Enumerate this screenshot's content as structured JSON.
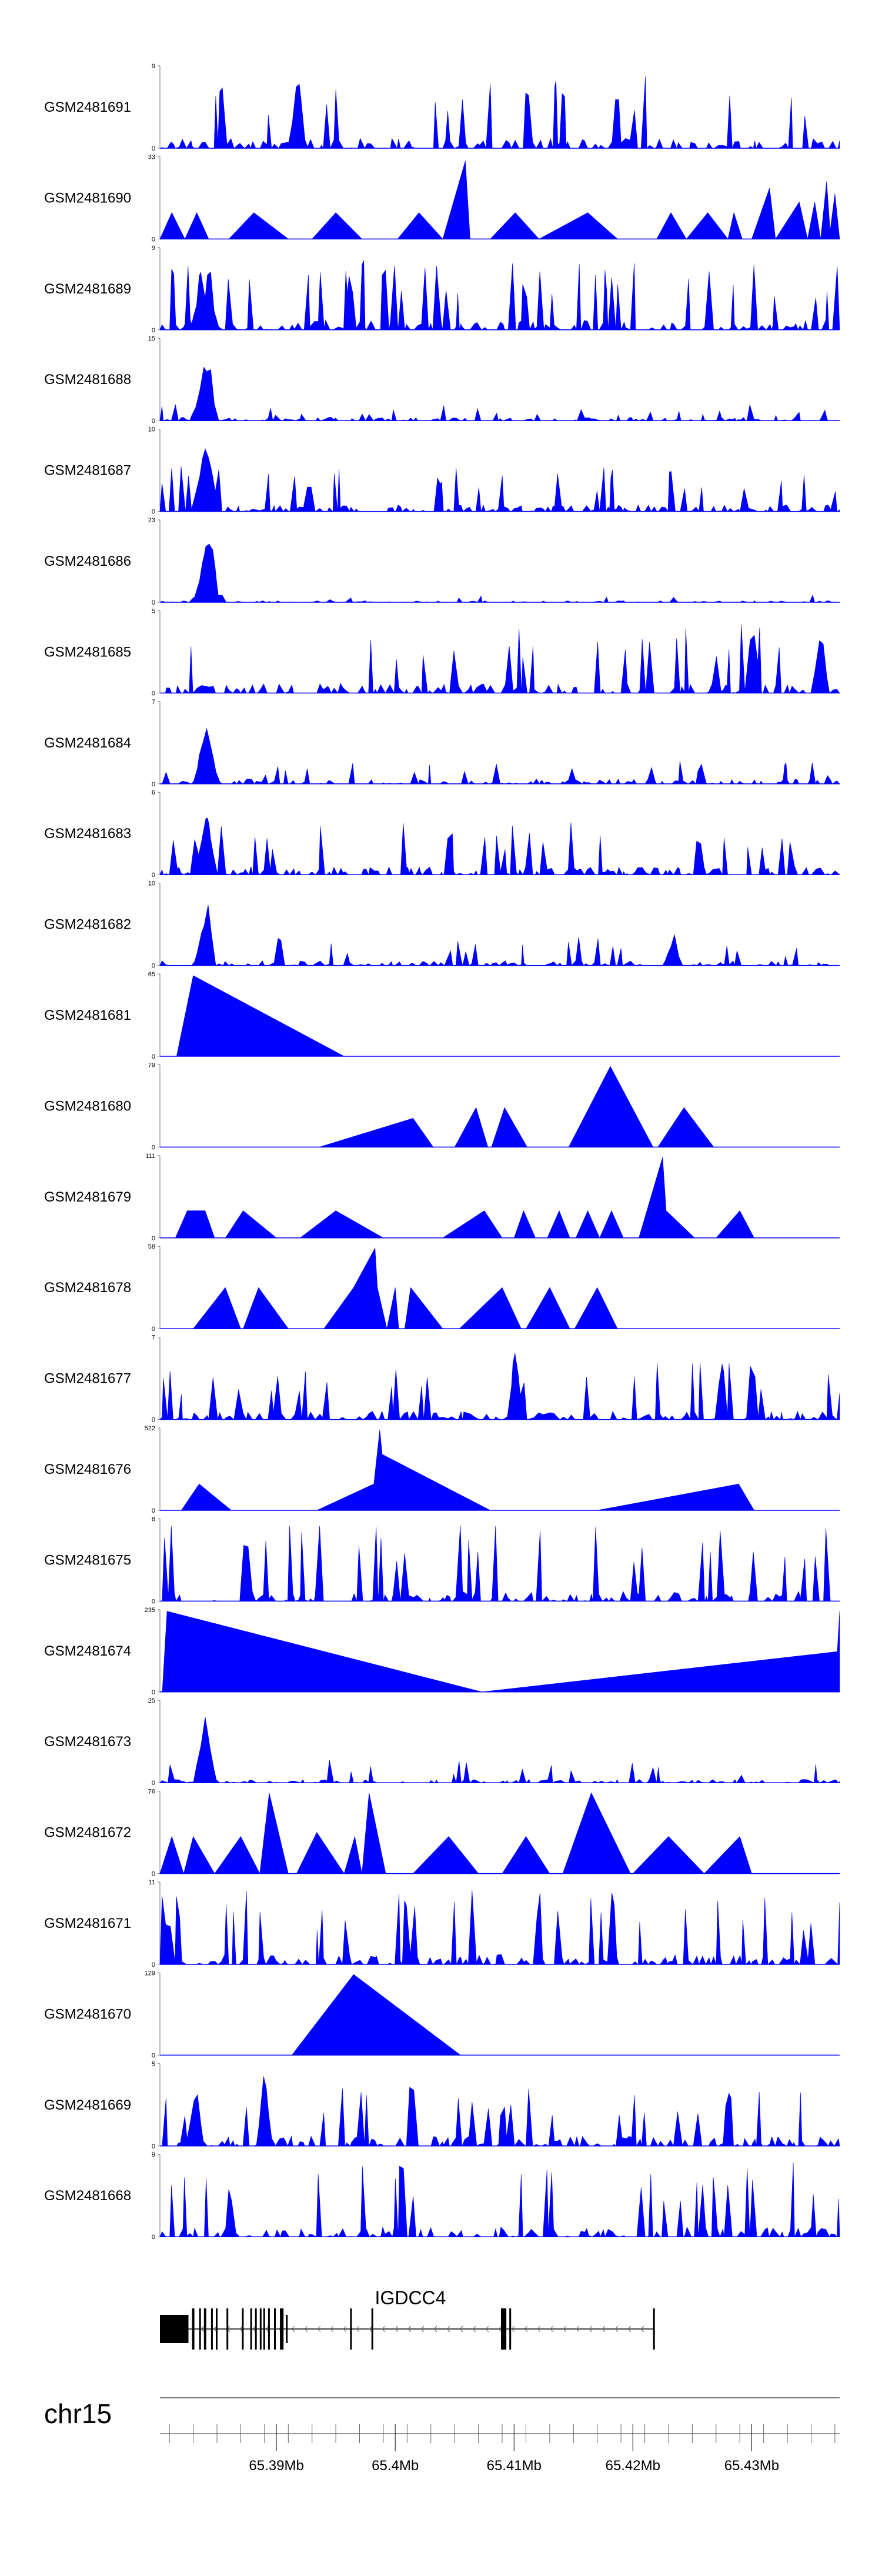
{
  "chart_data": {
    "type": "area",
    "chromosome": "chr15",
    "x_range": [
      65.3802,
      65.4374
    ],
    "x_unit": "Mb",
    "axis_ticks": [
      "65.39Mb",
      "65.4Mb",
      "65.41Mb",
      "65.42Mb",
      "65.43Mb"
    ],
    "axis_tick_values": [
      65.39,
      65.4,
      65.41,
      65.42,
      65.43
    ],
    "gene": {
      "name": "IGDCC4",
      "start": 65.3802,
      "end": 65.4218,
      "strand": "-"
    },
    "series_color": "#0000ff",
    "tracks": [
      {
        "name": "GSM2481691",
        "ymax": "9",
        "ymax_val": 9,
        "noise": {
          "seed": 11,
          "density": 0.55,
          "base": 0.12,
          "peakProb": 0.25,
          "peakMin": 0.35,
          "peakMax": 0.9
        },
        "peaks": [
          [
            65.3918,
            1.0
          ]
        ]
      },
      {
        "name": "GSM2481690",
        "ymax": "33",
        "ymax_val": 33,
        "points": [
          [
            65.3802,
            0
          ],
          [
            65.3812,
            0.32
          ],
          [
            65.3823,
            0
          ],
          [
            65.3833,
            0.32
          ],
          [
            65.3843,
            0
          ],
          [
            65.386,
            0
          ],
          [
            65.3881,
            0.32
          ],
          [
            65.391,
            0
          ],
          [
            65.393,
            0
          ],
          [
            65.395,
            0.32
          ],
          [
            65.3972,
            0
          ],
          [
            65.4002,
            0
          ],
          [
            65.402,
            0.32
          ],
          [
            65.404,
            0
          ],
          [
            65.4059,
            0.95
          ],
          [
            65.4063,
            0
          ],
          [
            65.408,
            0
          ],
          [
            65.4101,
            0.32
          ],
          [
            65.4121,
            0
          ],
          [
            65.4162,
            0.32
          ],
          [
            65.4187,
            0
          ],
          [
            65.422,
            0
          ],
          [
            65.4232,
            0.32
          ],
          [
            65.4245,
            0
          ],
          [
            65.4263,
            0.32
          ],
          [
            65.428,
            0
          ],
          [
            65.4285,
            0.32
          ],
          [
            65.4292,
            0
          ],
          [
            65.43,
            0
          ],
          [
            65.4315,
            0.62
          ],
          [
            65.432,
            0
          ],
          [
            65.434,
            0.45
          ],
          [
            65.4347,
            0
          ],
          [
            65.4353,
            0.45
          ],
          [
            65.4358,
            0
          ],
          [
            65.4363,
            0.7
          ],
          [
            65.4366,
            0.1
          ],
          [
            65.437,
            0.55
          ],
          [
            65.4374,
            0
          ]
        ]
      },
      {
        "name": "GSM2481689",
        "ymax": "9",
        "ymax_val": 9,
        "noise": {
          "seed": 23,
          "density": 0.55,
          "base": 0.12,
          "peakProb": 0.25,
          "peakMin": 0.35,
          "peakMax": 0.85
        },
        "peaks": [
          [
            65.3843,
            0.95
          ],
          [
            65.3835,
            0.6
          ]
        ]
      },
      {
        "name": "GSM2481688",
        "ymax": "15",
        "ymax_val": 15,
        "noise": {
          "seed": 31,
          "density": 0.5,
          "base": 0.04,
          "peakProb": 0.15,
          "peakMin": 0.06,
          "peakMax": 0.2
        },
        "peaks": [
          [
            65.384,
            0.95
          ],
          [
            65.3843,
            0.85
          ],
          [
            65.3837,
            0.55
          ],
          [
            65.3834,
            0.3
          ]
        ]
      },
      {
        "name": "GSM2481687",
        "ymax": "10",
        "ymax_val": 10,
        "noise": {
          "seed": 47,
          "density": 0.55,
          "base": 0.08,
          "peakProb": 0.2,
          "peakMin": 0.2,
          "peakMax": 0.55
        },
        "peaks": [
          [
            65.384,
            0.98
          ],
          [
            65.3844,
            0.85
          ],
          [
            65.3836,
            0.6
          ]
        ]
      },
      {
        "name": "GSM2481686",
        "ymax": "23",
        "ymax_val": 23,
        "noise": {
          "seed": 53,
          "density": 0.45,
          "base": 0.02,
          "peakProb": 0.1,
          "peakMin": 0.03,
          "peakMax": 0.09
        },
        "peaks": [
          [
            65.3842,
            0.98
          ],
          [
            65.3845,
            0.9
          ],
          [
            65.3838,
            0.55
          ],
          [
            65.3835,
            0.2
          ]
        ]
      },
      {
        "name": "GSM2481685",
        "ymax": "5",
        "ymax_val": 5,
        "noise": {
          "seed": 61,
          "density": 0.55,
          "base": 0.12,
          "peakProb": 0.25,
          "peakMin": 0.4,
          "peakMax": 0.85
        },
        "peaks": [
          [
            65.4301,
            1.0
          ],
          [
            65.4358,
            0.95
          ]
        ]
      },
      {
        "name": "GSM2481684",
        "ymax": "7",
        "ymax_val": 7,
        "noise": {
          "seed": 73,
          "density": 0.5,
          "base": 0.06,
          "peakProb": 0.15,
          "peakMin": 0.1,
          "peakMax": 0.3
        },
        "peaks": [
          [
            65.3841,
            0.98
          ],
          [
            65.3838,
            0.6
          ],
          [
            65.3845,
            0.5
          ]
        ]
      },
      {
        "name": "GSM2481683",
        "ymax": "6",
        "ymax_val": 6,
        "noise": {
          "seed": 79,
          "density": 0.55,
          "base": 0.1,
          "peakProb": 0.22,
          "peakMin": 0.3,
          "peakMax": 0.65
        },
        "peaks": [
          [
            65.3842,
            0.95
          ],
          [
            65.3838,
            0.65
          ]
        ]
      },
      {
        "name": "GSM2481682",
        "ymax": "10",
        "ymax_val": 10,
        "noise": {
          "seed": 89,
          "density": 0.5,
          "base": 0.06,
          "peakProb": 0.18,
          "peakMin": 0.1,
          "peakMax": 0.35
        },
        "peaks": [
          [
            65.3842,
            0.98
          ],
          [
            65.3838,
            0.6
          ],
          [
            65.4234,
            0.45
          ]
        ]
      },
      {
        "name": "GSM2481681",
        "ymax": "65",
        "ymax_val": 65,
        "points": [
          [
            65.3816,
            0
          ],
          [
            65.383,
            0.98
          ],
          [
            65.3957,
            0
          ]
        ]
      },
      {
        "name": "GSM2481680",
        "ymax": "79",
        "ymax_val": 79,
        "points": [
          [
            65.3936,
            0
          ],
          [
            65.4015,
            0.35
          ],
          [
            65.4032,
            0
          ],
          [
            65.405,
            0
          ],
          [
            65.4068,
            0.48
          ],
          [
            65.4078,
            0
          ],
          [
            65.4081,
            0
          ],
          [
            65.4092,
            0.48
          ],
          [
            65.4111,
            0
          ],
          [
            65.4116,
            0
          ],
          [
            65.4146,
            0
          ],
          [
            65.4181,
            0.98
          ],
          [
            65.4217,
            0
          ],
          [
            65.4221,
            0
          ],
          [
            65.4243,
            0.48
          ],
          [
            65.4268,
            0
          ],
          [
            65.4292,
            0
          ]
        ]
      },
      {
        "name": "GSM2481679",
        "ymax": "111",
        "ymax_val": 111,
        "points": [
          [
            65.3815,
            0
          ],
          [
            65.3825,
            0.33
          ],
          [
            65.384,
            0.33
          ],
          [
            65.3848,
            0
          ],
          [
            65.3857,
            0
          ],
          [
            65.3872,
            0.33
          ],
          [
            65.39,
            0
          ],
          [
            65.392,
            0
          ],
          [
            65.395,
            0.33
          ],
          [
            65.399,
            0
          ],
          [
            65.404,
            0
          ],
          [
            65.4075,
            0.33
          ],
          [
            65.409,
            0
          ],
          [
            65.41,
            0
          ],
          [
            65.4108,
            0.33
          ],
          [
            65.4118,
            0
          ],
          [
            65.4128,
            0
          ],
          [
            65.4138,
            0.33
          ],
          [
            65.4147,
            0
          ],
          [
            65.4152,
            0
          ],
          [
            65.4162,
            0.33
          ],
          [
            65.4172,
            0
          ],
          [
            65.4182,
            0.33
          ],
          [
            65.4192,
            0
          ],
          [
            65.4205,
            0
          ],
          [
            65.4225,
            0.98
          ],
          [
            65.4228,
            0.33
          ],
          [
            65.4252,
            0
          ],
          [
            65.427,
            0
          ],
          [
            65.429,
            0.33
          ],
          [
            65.4302,
            0
          ]
        ]
      },
      {
        "name": "GSM2481678",
        "ymax": "58",
        "ymax_val": 58,
        "points": [
          [
            65.383,
            0
          ],
          [
            65.3857,
            0.5
          ],
          [
            65.387,
            0
          ],
          [
            65.3872,
            0
          ],
          [
            65.3885,
            0.5
          ],
          [
            65.391,
            0
          ],
          [
            65.394,
            0
          ],
          [
            65.3965,
            0.5
          ],
          [
            65.3983,
            0.98
          ],
          [
            65.3985,
            0.5
          ],
          [
            65.3993,
            0
          ],
          [
            65.4,
            0.5
          ],
          [
            65.4003,
            0
          ],
          [
            65.4008,
            0
          ],
          [
            65.4013,
            0.5
          ],
          [
            65.404,
            0
          ],
          [
            65.4054,
            0
          ],
          [
            65.409,
            0.5
          ],
          [
            65.4106,
            0
          ],
          [
            65.411,
            0
          ],
          [
            65.413,
            0.5
          ],
          [
            65.4147,
            0
          ],
          [
            65.4151,
            0
          ],
          [
            65.417,
            0.5
          ],
          [
            65.4187,
            0
          ]
        ]
      },
      {
        "name": "GSM2481677",
        "ymax": "7",
        "ymax_val": 7,
        "noise": {
          "seed": 97,
          "density": 0.55,
          "base": 0.1,
          "peakProb": 0.22,
          "peakMin": 0.3,
          "peakMax": 0.7
        },
        "peaks": [
          [
            65.4101,
            1.0
          ]
        ]
      },
      {
        "name": "GSM2481676",
        "ymax": "522",
        "ymax_val": 522,
        "points": [
          [
            65.382,
            0
          ],
          [
            65.3835,
            0.32
          ],
          [
            65.3862,
            0
          ],
          [
            65.3934,
            0
          ],
          [
            65.3982,
            0.32
          ],
          [
            65.3987,
            0.98
          ],
          [
            65.3989,
            0.68
          ],
          [
            65.408,
            0
          ],
          [
            65.417,
            0
          ],
          [
            65.4289,
            0.32
          ],
          [
            65.4302,
            0
          ]
        ]
      },
      {
        "name": "GSM2481675",
        "ymax": "8",
        "ymax_val": 8,
        "noise": {
          "seed": 103,
          "density": 0.55,
          "base": 0.12,
          "peakProb": 0.25,
          "peakMin": 0.45,
          "peakMax": 0.95
        },
        "peaks": []
      },
      {
        "name": "GSM2481674",
        "ymax": "235",
        "ymax_val": 235,
        "points": [
          [
            65.3804,
            0
          ],
          [
            65.3808,
            0.98
          ],
          [
            65.4073,
            0
          ],
          [
            65.4372,
            0.49
          ],
          [
            65.4374,
            0.98
          ],
          [
            65.4374,
            0
          ]
        ]
      },
      {
        "name": "GSM2481673",
        "ymax": "25",
        "ymax_val": 25,
        "noise": {
          "seed": 109,
          "density": 0.5,
          "base": 0.04,
          "peakProb": 0.18,
          "peakMin": 0.08,
          "peakMax": 0.3
        },
        "peaks": [
          [
            65.384,
            0.98
          ],
          [
            65.3843,
            0.6
          ],
          [
            65.3837,
            0.4
          ]
        ]
      },
      {
        "name": "GSM2481672",
        "ymax": "76",
        "ymax_val": 76,
        "points": [
          [
            65.3802,
            0
          ],
          [
            65.3812,
            0.45
          ],
          [
            65.3822,
            0
          ],
          [
            65.383,
            0.45
          ],
          [
            65.3848,
            0
          ],
          [
            65.387,
            0.45
          ],
          [
            65.3886,
            0
          ],
          [
            65.3894,
            0.98
          ],
          [
            65.391,
            0
          ],
          [
            65.3917,
            0
          ],
          [
            65.3934,
            0.5
          ],
          [
            65.3957,
            0
          ],
          [
            65.3966,
            0.45
          ],
          [
            65.3972,
            0
          ],
          [
            65.3978,
            0.98
          ],
          [
            65.3992,
            0
          ],
          [
            65.4015,
            0
          ],
          [
            65.4045,
            0.45
          ],
          [
            65.407,
            0
          ],
          [
            65.409,
            0
          ],
          [
            65.411,
            0.45
          ],
          [
            65.413,
            0
          ],
          [
            65.4141,
            0
          ],
          [
            65.4165,
            0.98
          ],
          [
            65.4198,
            0
          ],
          [
            65.42,
            0
          ],
          [
            65.423,
            0.45
          ],
          [
            65.426,
            0
          ],
          [
            65.429,
            0.45
          ],
          [
            65.43,
            0
          ]
        ]
      },
      {
        "name": "GSM2481671",
        "ymax": "11",
        "ymax_val": 11,
        "noise": {
          "seed": 113,
          "density": 0.55,
          "base": 0.12,
          "peakProb": 0.25,
          "peakMin": 0.4,
          "peakMax": 0.9
        },
        "peaks": []
      },
      {
        "name": "GSM2481670",
        "ymax": "129",
        "ymax_val": 129,
        "points": [
          [
            65.3913,
            0
          ],
          [
            65.3965,
            0.98
          ],
          [
            65.4055,
            0
          ]
        ]
      },
      {
        "name": "GSM2481669",
        "ymax": "5",
        "ymax_val": 5,
        "noise": {
          "seed": 127,
          "density": 0.55,
          "base": 0.12,
          "peakProb": 0.25,
          "peakMin": 0.35,
          "peakMax": 0.75
        },
        "peaks": [
          [
            65.3832,
            0.95
          ],
          [
            65.389,
            0.98
          ]
        ]
      },
      {
        "name": "GSM2481668",
        "ymax": "9",
        "ymax_val": 9,
        "noise": {
          "seed": 131,
          "density": 0.55,
          "base": 0.12,
          "peakProb": 0.25,
          "peakMin": 0.4,
          "peakMax": 0.9
        },
        "peaks": []
      }
    ]
  }
}
